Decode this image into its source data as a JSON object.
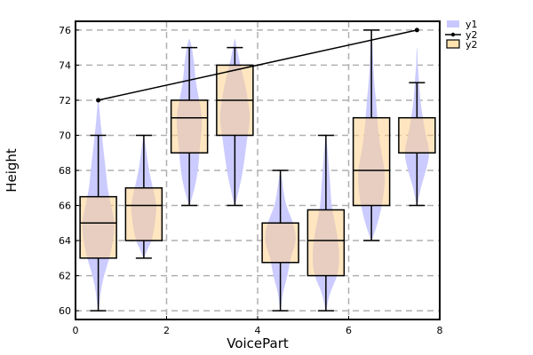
{
  "chart_data": {
    "type": "violin+box+line",
    "title": "",
    "xlabel": "VoicePart",
    "ylabel": "Height",
    "xlim": [
      0,
      8
    ],
    "ylim": [
      59.5,
      76.5
    ],
    "xticks": [
      0,
      2,
      4,
      6,
      8
    ],
    "yticks": [
      60,
      62,
      64,
      66,
      68,
      70,
      72,
      74,
      76
    ],
    "grid": true,
    "legend": {
      "placement": "top-right",
      "entries": [
        {
          "label": "y1",
          "kind": "violin",
          "color": "#c8c8ff"
        },
        {
          "label": "y2",
          "kind": "line",
          "color": "#000000"
        },
        {
          "label": "y2",
          "kind": "box",
          "color": "#ffe4b0"
        }
      ]
    },
    "violins": [
      {
        "x": 0.5,
        "halfwidth": 0.4,
        "profile": [
          [
            60,
            0.02
          ],
          [
            61,
            0.12
          ],
          [
            62,
            0.3
          ],
          [
            63,
            0.62
          ],
          [
            64,
            0.82
          ],
          [
            65,
            0.92
          ],
          [
            66,
            0.7
          ],
          [
            67,
            0.5
          ],
          [
            68,
            0.42
          ],
          [
            69,
            0.3
          ],
          [
            70,
            0.2
          ],
          [
            71,
            0.1
          ],
          [
            72,
            0.02
          ]
        ]
      },
      {
        "x": 1.5,
        "halfwidth": 0.4,
        "profile": [
          [
            63,
            0.02
          ],
          [
            63.5,
            0.2
          ],
          [
            64,
            0.45
          ],
          [
            65,
            0.62
          ],
          [
            66,
            0.72
          ],
          [
            67,
            0.5
          ],
          [
            68,
            0.28
          ],
          [
            69,
            0.15
          ],
          [
            70,
            0.02
          ]
        ]
      },
      {
        "x": 2.5,
        "halfwidth": 0.4,
        "profile": [
          [
            66,
            0.02
          ],
          [
            67,
            0.3
          ],
          [
            68,
            0.48
          ],
          [
            69,
            0.55
          ],
          [
            70,
            0.65
          ],
          [
            71,
            0.72
          ],
          [
            72,
            0.55
          ],
          [
            73,
            0.35
          ],
          [
            74,
            0.28
          ],
          [
            75,
            0.15
          ],
          [
            75.5,
            0.02
          ]
        ]
      },
      {
        "x": 3.5,
        "halfwidth": 0.4,
        "profile": [
          [
            66,
            0.02
          ],
          [
            67,
            0.25
          ],
          [
            68,
            0.45
          ],
          [
            70,
            0.7
          ],
          [
            71,
            0.85
          ],
          [
            72,
            0.72
          ],
          [
            73,
            0.55
          ],
          [
            74,
            0.3
          ],
          [
            75,
            0.1
          ],
          [
            75.5,
            0.02
          ]
        ]
      },
      {
        "x": 4.5,
        "halfwidth": 0.4,
        "profile": [
          [
            60,
            0.02
          ],
          [
            61,
            0.12
          ],
          [
            62,
            0.4
          ],
          [
            63,
            0.55
          ],
          [
            64,
            0.9
          ],
          [
            65,
            0.72
          ],
          [
            66,
            0.3
          ],
          [
            67,
            0.15
          ],
          [
            68,
            0.02
          ]
        ]
      },
      {
        "x": 5.5,
        "halfwidth": 0.4,
        "profile": [
          [
            60,
            0.02
          ],
          [
            61,
            0.2
          ],
          [
            62,
            0.65
          ],
          [
            63,
            0.75
          ],
          [
            64,
            0.68
          ],
          [
            65,
            0.5
          ],
          [
            66,
            0.3
          ],
          [
            67,
            0.25
          ],
          [
            68,
            0.18
          ],
          [
            69,
            0.1
          ],
          [
            70,
            0.02
          ]
        ]
      },
      {
        "x": 6.5,
        "halfwidth": 0.4,
        "profile": [
          [
            64,
            0.02
          ],
          [
            65,
            0.35
          ],
          [
            66,
            0.58
          ],
          [
            67,
            0.72
          ],
          [
            68,
            0.75
          ],
          [
            69,
            0.55
          ],
          [
            70,
            0.4
          ],
          [
            71,
            0.32
          ],
          [
            72,
            0.25
          ],
          [
            73,
            0.15
          ],
          [
            74,
            0.1
          ],
          [
            75,
            0.06
          ],
          [
            76,
            0.02
          ]
        ]
      },
      {
        "x": 7.5,
        "halfwidth": 0.4,
        "profile": [
          [
            66,
            0.02
          ],
          [
            67,
            0.2
          ],
          [
            68,
            0.5
          ],
          [
            69,
            0.72
          ],
          [
            70,
            0.48
          ],
          [
            71,
            0.32
          ],
          [
            72,
            0.18
          ],
          [
            73,
            0.12
          ],
          [
            74,
            0.04
          ],
          [
            75,
            0.02
          ]
        ]
      }
    ],
    "boxes": [
      {
        "x": 0.5,
        "halfwidth": 0.4,
        "whisker_low": 60,
        "q1": 63,
        "median": 65,
        "q3": 66.5,
        "whisker_high": 70
      },
      {
        "x": 1.5,
        "halfwidth": 0.4,
        "whisker_low": 63,
        "q1": 64,
        "median": 66,
        "q3": 67,
        "whisker_high": 70
      },
      {
        "x": 2.5,
        "halfwidth": 0.4,
        "whisker_low": 66,
        "q1": 69,
        "median": 71,
        "q3": 72,
        "whisker_high": 75
      },
      {
        "x": 3.5,
        "halfwidth": 0.4,
        "whisker_low": 66,
        "q1": 70,
        "median": 72,
        "q3": 74,
        "whisker_high": 75
      },
      {
        "x": 4.5,
        "halfwidth": 0.4,
        "whisker_low": 60,
        "q1": 62.75,
        "median": 65,
        "q3": 65,
        "whisker_high": 68
      },
      {
        "x": 5.5,
        "halfwidth": 0.4,
        "whisker_low": 60,
        "q1": 62,
        "median": 64,
        "q3": 65.75,
        "whisker_high": 70
      },
      {
        "x": 6.5,
        "halfwidth": 0.4,
        "whisker_low": 64,
        "q1": 66,
        "median": 68,
        "q3": 71,
        "whisker_high": 76
      },
      {
        "x": 7.5,
        "halfwidth": 0.4,
        "whisker_low": 66,
        "q1": 69,
        "median": 69,
        "q3": 71,
        "whisker_high": 73
      }
    ],
    "line": {
      "label": "y2",
      "x": [
        0.5,
        7.5
      ],
      "y": [
        72,
        76
      ]
    }
  }
}
